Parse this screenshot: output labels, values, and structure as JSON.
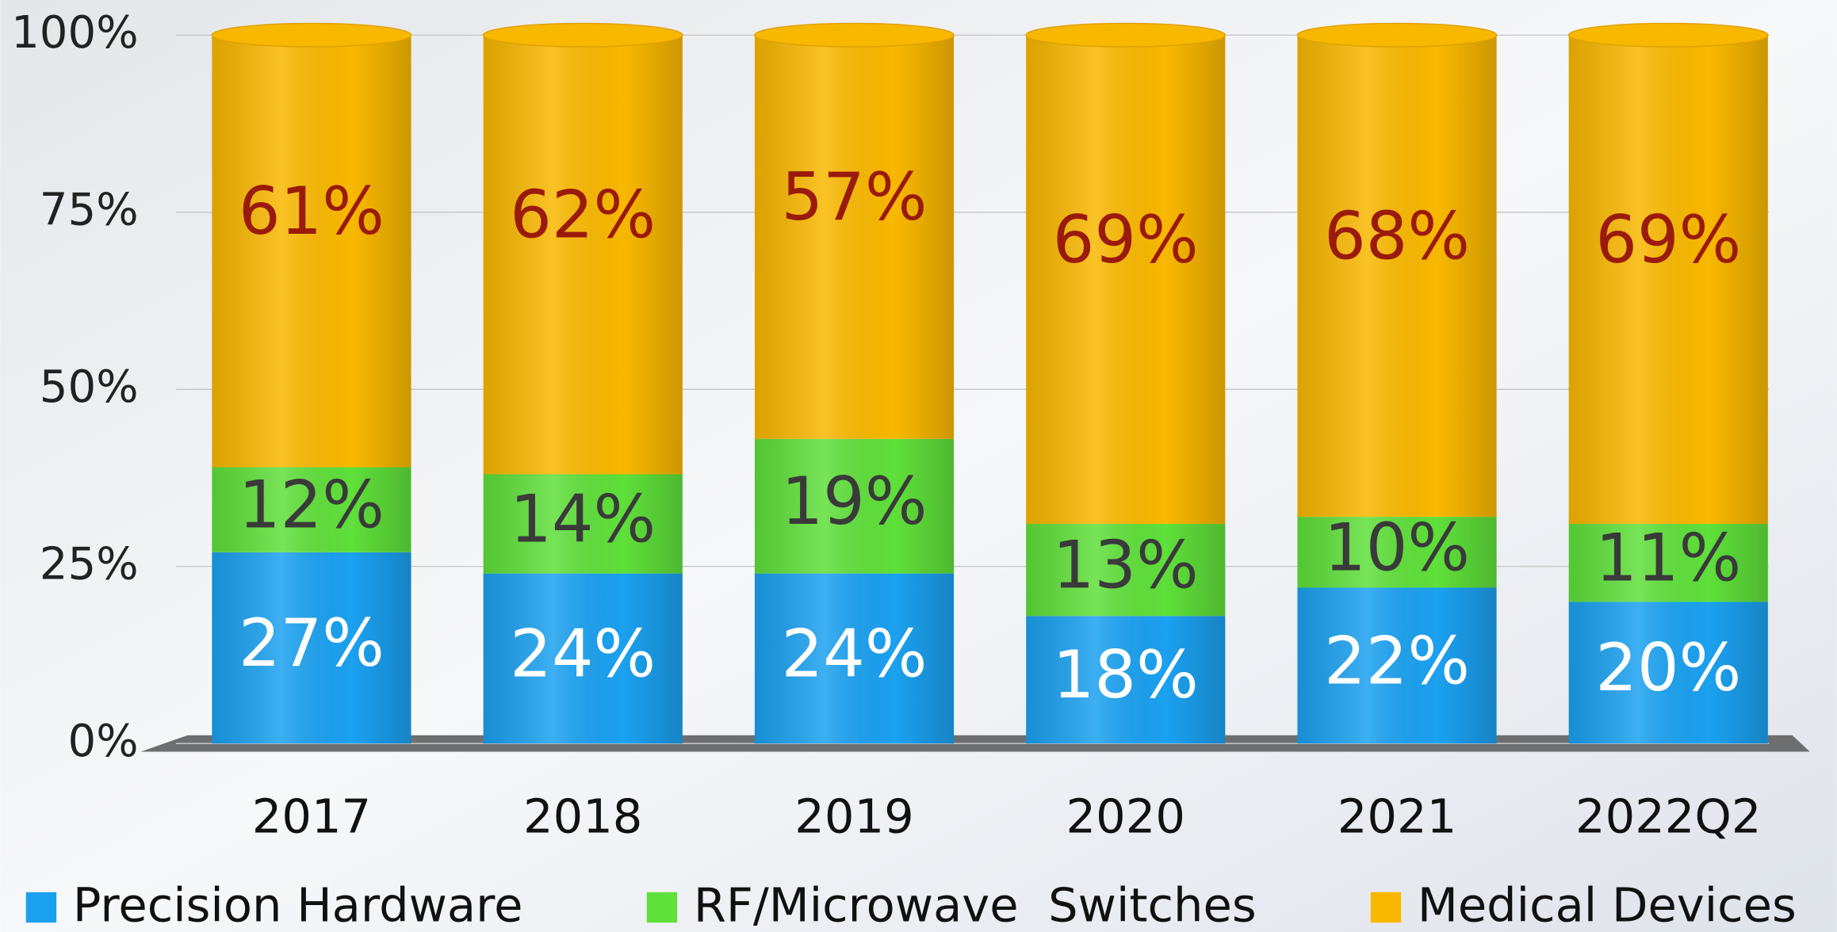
{
  "chart_data": {
    "type": "stacked_bar",
    "categories": [
      "2017",
      "2018",
      "2019",
      "2020",
      "2021",
      "2022Q2"
    ],
    "series": [
      {
        "name": "Precision Hardware",
        "color": "#1ba1f0",
        "label_color": "#ffffff",
        "values": [
          27,
          24,
          24,
          18,
          22,
          20
        ],
        "value_labels": [
          "27%",
          "24%",
          "24%",
          "18%",
          "22%",
          "20%"
        ]
      },
      {
        "name": "RF/Microwave  Switches",
        "color": "#5fe03a",
        "label_color": "#3a3a3a",
        "values": [
          12,
          14,
          19,
          13,
          10,
          11
        ],
        "value_labels": [
          "12%",
          "14%",
          "19%",
          "13%",
          "10%",
          "11%"
        ]
      },
      {
        "name": "Medical Devices",
        "color": "#f9b800",
        "label_color": "#9a1a0c",
        "values": [
          61,
          62,
          57,
          69,
          68,
          69
        ],
        "value_labels": [
          "61%",
          "62%",
          "57%",
          "69%",
          "68%",
          "69%"
        ]
      }
    ],
    "ylim": [
      0,
      100
    ],
    "yticks": [
      {
        "value": 0,
        "label": "0%"
      },
      {
        "value": 25,
        "label": "25%"
      },
      {
        "value": 50,
        "label": "50%"
      },
      {
        "value": 75,
        "label": "75%"
      },
      {
        "value": 100,
        "label": "100%"
      }
    ],
    "grid": true,
    "legend": "bottom"
  }
}
